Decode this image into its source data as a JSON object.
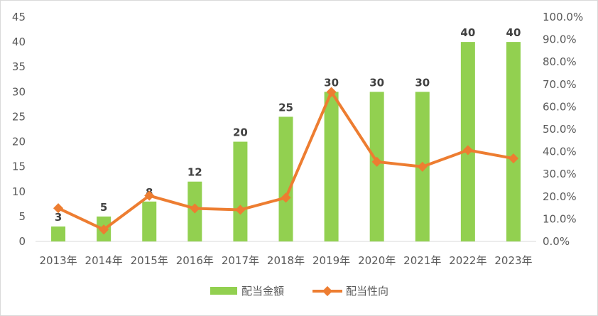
{
  "chart_data": {
    "type": "bar",
    "categories": [
      "2013年",
      "2014年",
      "2015年",
      "2016年",
      "2017年",
      "2018年",
      "2019年",
      "2020年",
      "2021年",
      "2022年",
      "2023年"
    ],
    "series": [
      {
        "name": "配当金額",
        "type": "bar",
        "axis": "left",
        "color": "#92d050",
        "values": [
          3,
          5,
          8,
          12,
          20,
          25,
          30,
          30,
          30,
          40,
          40
        ],
        "data_labels": [
          "3",
          "5",
          "8",
          "12",
          "20",
          "25",
          "30",
          "30",
          "30",
          "40",
          "40"
        ]
      },
      {
        "name": "配当性向",
        "type": "line",
        "axis": "right",
        "color": "#ed7d31",
        "values": [
          14.8,
          5.3,
          20.4,
          14.7,
          14.1,
          19.5,
          66.6,
          35.5,
          33.3,
          40.7,
          37.0
        ]
      }
    ],
    "y_left": {
      "ylim": [
        0,
        45
      ],
      "ticks": [
        "0",
        "5",
        "10",
        "15",
        "20",
        "25",
        "30",
        "35",
        "40",
        "45"
      ]
    },
    "y_right": {
      "ylim": [
        0,
        100
      ],
      "ticks": [
        "0.0%",
        "10.0%",
        "20.0%",
        "30.0%",
        "40.0%",
        "50.0%",
        "60.0%",
        "70.0%",
        "80.0%",
        "90.0%",
        "100.0%"
      ]
    },
    "grid": false,
    "legend_position": "bottom"
  }
}
